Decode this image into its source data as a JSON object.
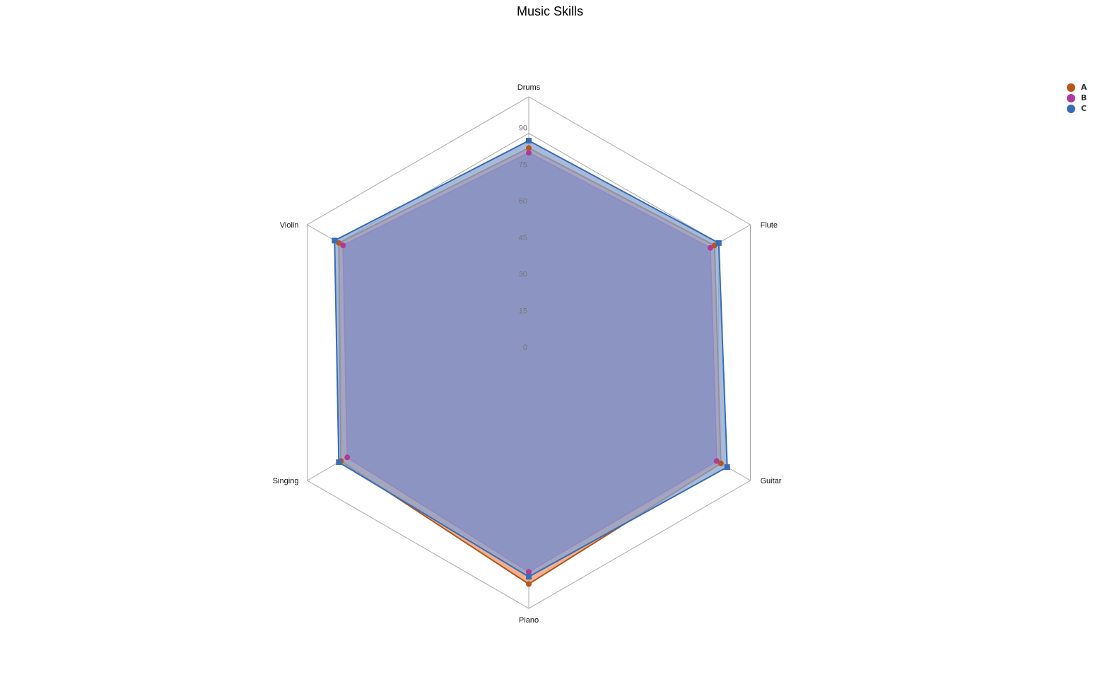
{
  "chart_data": {
    "type": "radar",
    "title": "Music Skills",
    "axes": [
      "Drums",
      "Flute",
      "Guitar",
      "Piano",
      "Singing",
      "Violin"
    ],
    "r_ticks": [
      0,
      15,
      30,
      45,
      60,
      75,
      90
    ],
    "r_range": [
      0,
      105
    ],
    "series": [
      {
        "name": "A",
        "color": "#b5561a",
        "fill": "#e8966b",
        "marker": "circle",
        "values": [
          84,
          88,
          91,
          95,
          89,
          90
        ]
      },
      {
        "name": "B",
        "color": "#b03a9a",
        "fill": "#8e5f9d",
        "marker": "circle",
        "values": [
          82,
          86,
          89,
          90,
          86,
          88
        ]
      },
      {
        "name": "C",
        "color": "#3a6cb5",
        "fill": "#88a4cf",
        "marker": "square",
        "values": [
          87,
          90,
          94,
          92,
          90,
          92
        ]
      }
    ],
    "legend_position": "top-right",
    "grid": true
  }
}
